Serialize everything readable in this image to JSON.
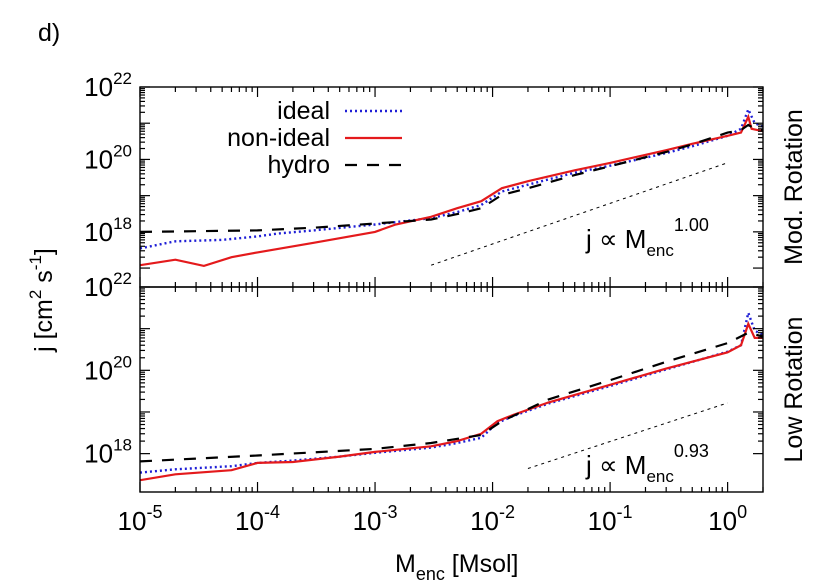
{
  "panel_label": "d)",
  "chart_data": {
    "type": "line",
    "xscale": "log",
    "yscale": "log",
    "xlim": [
      1e-05,
      2
    ],
    "xlabel_main": "M",
    "xlabel_sub": "enc",
    "xlabel_units": "[Msol]",
    "ylabel": "j  [cm",
    "ylabel_sup1": "2",
    "ylabel_mid": " s",
    "ylabel_sup2": "-1",
    "ylabel_end": "]",
    "x_ticks": [
      {
        "base": "10",
        "exp": "-5"
      },
      {
        "base": "10",
        "exp": "-4"
      },
      {
        "base": "10",
        "exp": "-3"
      },
      {
        "base": "10",
        "exp": "-2"
      },
      {
        "base": "10",
        "exp": "-1"
      },
      {
        "base": "10",
        "exp": "0"
      }
    ],
    "legend": {
      "position": "top-left",
      "entries": [
        {
          "label": "ideal",
          "color": "#1f1fd6",
          "style": "dotted"
        },
        {
          "label": "non-ideal",
          "color": "#e41a1c",
          "style": "solid"
        },
        {
          "label": "hydro",
          "color": "#000000",
          "style": "dashed"
        }
      ]
    },
    "panels": [
      {
        "name": "Mod. Rotation",
        "ylim": [
          3e+16,
          1e+22
        ],
        "y_ticks": [
          {
            "base": "10",
            "exp": "22",
            "value": 1e+22
          },
          {
            "base": "10",
            "exp": "20",
            "value": 1e+20
          },
          {
            "base": "10",
            "exp": "18",
            "value": 1e+18
          }
        ],
        "annotation": {
          "text": "j ∝ M",
          "sub": "enc",
          "sup": "1.00"
        },
        "guide": {
          "x": [
            0.003,
            1.0
          ],
          "y": [
            1.2e+17,
            8.1e+19
          ]
        },
        "series": [
          {
            "name": "ideal",
            "x": [
              1e-05,
              2e-05,
              5e-05,
              0.0001,
              0.00015,
              0.0003,
              0.001,
              0.003,
              0.005,
              0.008,
              0.012,
              0.02,
              0.05,
              0.1,
              0.3,
              0.5,
              1.0,
              1.3,
              1.5,
              1.7,
              2.0
            ],
            "y": [
              3.5e+17,
              5.5e+17,
              6e+17,
              7.5e+17,
              9e+17,
              1.1e+18,
              1.6e+18,
              2.4e+18,
              3.5e+18,
              5.5e+18,
              1.3e+19,
              2e+19,
              4.3e+19,
              6.7e+19,
              1.5e+20,
              2.3e+20,
              4.5e+20,
              7e+20,
              2.4e+21,
              1e+21,
              8e+20
            ]
          },
          {
            "name": "non-ideal",
            "x": [
              1e-05,
              2e-05,
              3.5e-05,
              6e-05,
              0.0001,
              0.0003,
              0.001,
              0.0015,
              0.003,
              0.005,
              0.008,
              0.012,
              0.02,
              0.05,
              0.1,
              0.3,
              0.5,
              1.0,
              1.3,
              1.5,
              1.6,
              2.0
            ],
            "y": [
              1.2e+17,
              1.7e+17,
              1.15e+17,
              2e+17,
              2.7e+17,
              5e+17,
              1e+18,
              1.6e+18,
              2.6e+18,
              4.5e+18,
              7e+18,
              1.6e+19,
              2.5e+19,
              5e+19,
              8e+19,
              1.8e+20,
              2.7e+20,
              4.5e+20,
              5.5e+20,
              1.5e+21,
              7e+20,
              6e+20
            ]
          },
          {
            "name": "hydro",
            "x": [
              1e-05,
              0.0001,
              0.0003,
              0.001,
              0.003,
              0.005,
              0.008,
              0.012,
              0.02,
              0.05,
              0.1,
              0.3,
              0.5,
              1.0,
              1.3,
              1.5,
              1.7,
              2.0
            ],
            "y": [
              1e+18,
              1.1e+18,
              1.3e+18,
              1.7e+18,
              2.2e+18,
              3.1e+18,
              4.5e+18,
              1.05e+19,
              1.6e+19,
              3.7e+19,
              6.5e+19,
              1.6e+20,
              2.6e+20,
              5.5e+20,
              6.5e+20,
              9e+20,
              7e+20,
              6.5e+20
            ]
          }
        ]
      },
      {
        "name": "Low Rotation",
        "ylim": [
          1.2e+17,
          1e+22
        ],
        "y_ticks": [
          {
            "base": "10",
            "exp": "22",
            "value": 1e+22
          },
          {
            "base": "10",
            "exp": "20",
            "value": 1e+20
          },
          {
            "base": "10",
            "exp": "18",
            "value": 1e+18
          }
        ],
        "annotation": {
          "text": "j ∝ M",
          "sub": "enc",
          "sup": "0.93"
        },
        "guide": {
          "x": [
            0.02,
            1.0
          ],
          "y": [
            4.4e+17,
            1.65e+19
          ]
        },
        "series": [
          {
            "name": "ideal",
            "x": [
              1e-05,
              2e-05,
              6e-05,
              0.0001,
              0.0002,
              0.0005,
              0.001,
              0.003,
              0.005,
              0.008,
              0.011,
              0.015,
              0.03,
              0.1,
              0.3,
              1.0,
              1.3,
              1.5,
              1.7,
              2.0
            ],
            "y": [
              3.5e+17,
              4.2e+17,
              5e+17,
              6e+17,
              6.8e+17,
              8.5e+17,
              1.05e+18,
              1.4e+18,
              1.8e+18,
              2.4e+18,
              5.5e+18,
              8e+18,
              1.6e+19,
              4.2e+19,
              1.05e+20,
              2.8e+20,
              4e+20,
              2.4e+21,
              9e+20,
              7e+20
            ]
          },
          {
            "name": "non-ideal",
            "x": [
              1e-05,
              2e-05,
              6e-05,
              0.0001,
              0.0002,
              0.0005,
              0.001,
              0.003,
              0.005,
              0.008,
              0.011,
              0.015,
              0.03,
              0.1,
              0.3,
              1.0,
              1.3,
              1.5,
              1.7,
              2.0
            ],
            "y": [
              2.3e+17,
              3.2e+17,
              4e+17,
              6e+17,
              6.3e+17,
              8.5e+17,
              1.1e+18,
              1.5e+18,
              2e+18,
              3e+18,
              6e+18,
              8.5e+18,
              1.7e+19,
              4.5e+19,
              1.1e+20,
              2.7e+20,
              4e+20,
              1.3e+21,
              6e+20,
              6e+20
            ]
          },
          {
            "name": "hydro",
            "x": [
              1e-05,
              0.0001,
              0.001,
              0.003,
              0.008,
              0.012,
              0.03,
              0.1,
              0.3,
              1.0,
              1.5,
              2.0
            ],
            "y": [
              6.5e+17,
              9e+17,
              1.3e+18,
              1.8e+18,
              2.8e+18,
              6e+18,
              2e+19,
              5.8e+19,
              1.6e+20,
              4.5e+20,
              8e+20,
              6.5e+20
            ]
          }
        ]
      }
    ]
  }
}
